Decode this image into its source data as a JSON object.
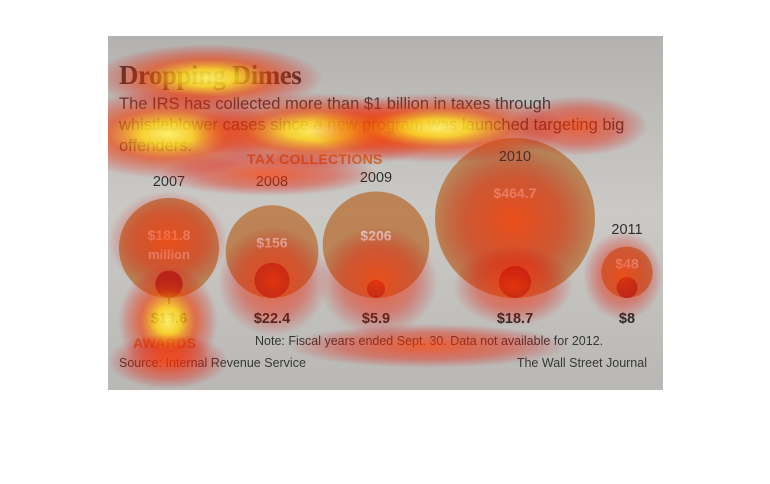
{
  "title": "Dropping Dimes",
  "subtitle": "The IRS has collected more than $1 billion in taxes through whistleblower cases since a new program was launched targeting big offenders.",
  "collections_header": "TAX COLLECTIONS",
  "awards_header": "AWARDS",
  "note": "Note: Fiscal years ended Sept. 30. Data not available for 2012.",
  "source": "Source: Internal Revenue Service",
  "credit": "The Wall Street Journal",
  "colors": {
    "collections_circle": "#c9864f",
    "awards_circle": "#9c1c1c",
    "panel_background": "#d9d7d3",
    "header_accent": "#d8742a"
  },
  "chart_data": {
    "type": "bubble",
    "unit": "$ millions",
    "categories": [
      "2007",
      "2008",
      "2009",
      "2010",
      "2011"
    ],
    "series": [
      {
        "name": "TAX COLLECTIONS",
        "values": [
          181.8,
          156,
          206,
          464.7,
          48
        ],
        "labels": [
          "$181.8 million",
          "$156",
          "$206",
          "$464.7",
          "$48"
        ]
      },
      {
        "name": "AWARDS",
        "values": [
          13.6,
          22.4,
          5.9,
          18.7,
          8
        ],
        "labels": [
          "$13.6",
          "$22.4",
          "$5.9",
          "$18.7",
          "$8"
        ]
      }
    ]
  }
}
